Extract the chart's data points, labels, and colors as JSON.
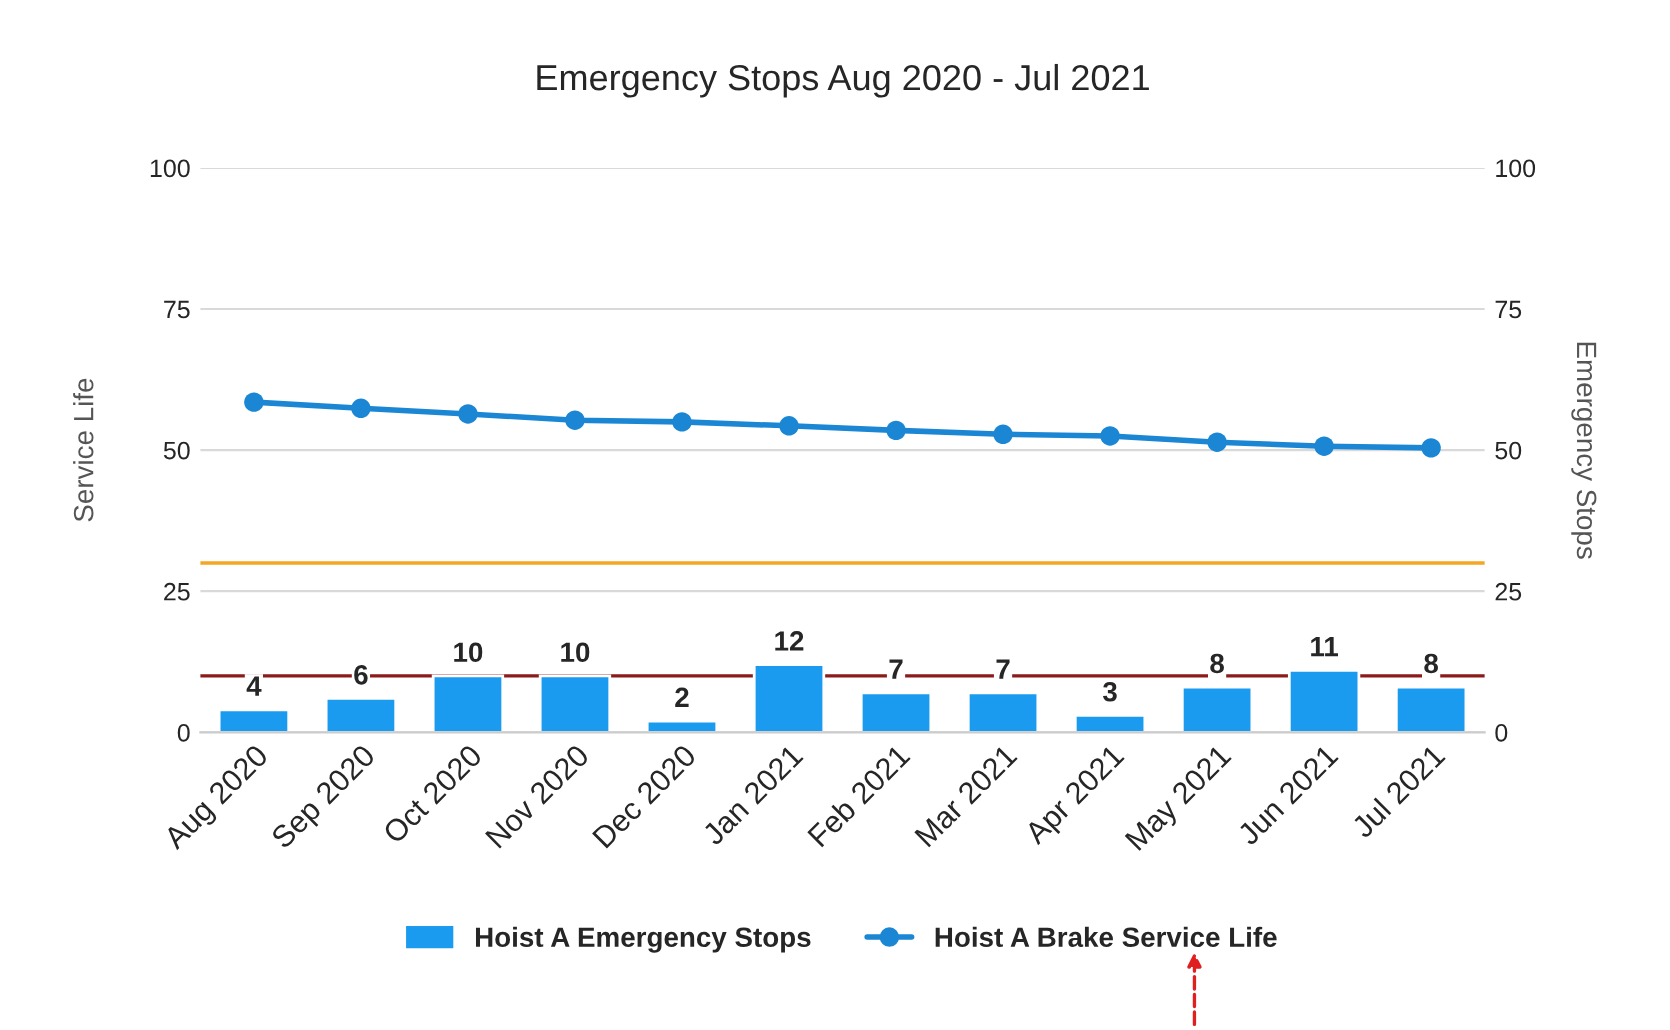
{
  "chart_data": {
    "type": "bar",
    "title": "Emergency Stops Aug 2020 - Jul 2021",
    "categories": [
      "Aug 2020",
      "Sep 2020",
      "Oct 2020",
      "Nov 2020",
      "Dec 2020",
      "Jan 2021",
      "Feb 2021",
      "Mar 2021",
      "Apr 2021",
      "May 2021",
      "Jun 2021",
      "Jul 2021"
    ],
    "series": [
      {
        "name": "Hoist A Emergency Stops",
        "axis": "y2",
        "color": "#1a9bf0",
        "values": [
          4,
          6,
          10,
          10,
          2,
          12,
          7,
          7,
          3,
          8,
          11,
          8
        ],
        "value_labels": [
          "4",
          "6",
          "10",
          "10",
          "2",
          "12",
          "7",
          "7",
          "3",
          "8",
          "11",
          "8"
        ]
      },
      {
        "name": "Hoist A Brake Service Life",
        "type": "line",
        "axis": "y",
        "color": "#1b87d4",
        "values": [
          58.5,
          57.4,
          56.4,
          55.3,
          55.0,
          54.3,
          53.5,
          52.8,
          52.5,
          51.4,
          50.7,
          50.4
        ]
      }
    ],
    "ylabel": "Service Life",
    "y2label": "Emergency Stops",
    "ylim": [
      0,
      100
    ],
    "yticks": [
      0,
      25,
      50,
      75,
      100
    ],
    "y2lim": [
      0,
      100
    ],
    "y2ticks": [
      0,
      25,
      50,
      75,
      100
    ],
    "ref_lines": [
      {
        "axis": "y",
        "value": 30,
        "color": "#f5a623"
      },
      {
        "axis": "y2",
        "value": 10,
        "color": "#8b1a1a"
      }
    ],
    "grid": "y",
    "legend": "bottom",
    "marker": "circle",
    "line_style": "solid"
  }
}
